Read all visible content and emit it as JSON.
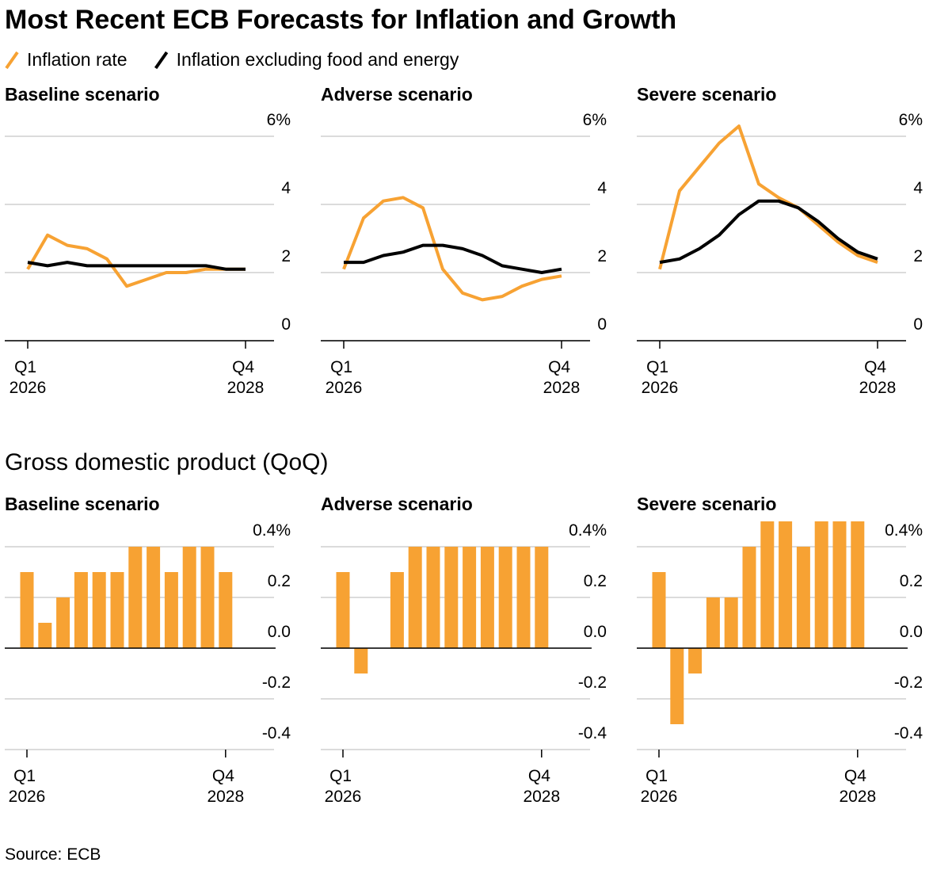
{
  "title": "Most Recent ECB Forecasts for Inflation and Growth",
  "gdp_title": "Gross domestic product (QoQ)",
  "source": "Source: ECB",
  "chart_data": [
    {
      "type": "line",
      "title": "Baseline scenario",
      "categories": [
        "Q1 2026",
        null,
        null,
        null,
        null,
        null,
        null,
        null,
        null,
        null,
        null,
        "Q4 2028"
      ],
      "series": [
        {
          "name": "Inflation rate",
          "color": "#f7a233",
          "values": [
            2.1,
            3.1,
            2.8,
            2.7,
            2.4,
            1.6,
            1.8,
            2.0,
            2.0,
            2.1,
            2.1,
            2.1
          ]
        },
        {
          "name": "Inflation excluding food and energy",
          "color": "#000000",
          "values": [
            2.3,
            2.2,
            2.3,
            2.2,
            2.2,
            2.2,
            2.2,
            2.2,
            2.2,
            2.2,
            2.1,
            2.1
          ]
        }
      ],
      "ylim": [
        0,
        6.5
      ],
      "yticks": [
        0,
        2,
        4,
        {
          "value": 6,
          "label": "6%"
        }
      ],
      "grid": true
    },
    {
      "type": "line",
      "title": "Adverse scenario",
      "categories": [
        "Q1 2026",
        null,
        null,
        null,
        null,
        null,
        null,
        null,
        null,
        null,
        null,
        "Q4 2028"
      ],
      "series": [
        {
          "name": "Inflation rate",
          "color": "#f7a233",
          "values": [
            2.1,
            3.6,
            4.1,
            4.2,
            3.9,
            2.1,
            1.4,
            1.2,
            1.3,
            1.6,
            1.8,
            1.9
          ]
        },
        {
          "name": "Inflation excluding food and energy",
          "color": "#000000",
          "values": [
            2.3,
            2.3,
            2.5,
            2.6,
            2.8,
            2.8,
            2.7,
            2.5,
            2.2,
            2.1,
            2.0,
            2.1
          ]
        }
      ],
      "ylim": [
        0,
        6.5
      ],
      "yticks": [
        0,
        2,
        4,
        {
          "value": 6,
          "label": "6%"
        }
      ],
      "grid": true
    },
    {
      "type": "line",
      "title": "Severe scenario",
      "categories": [
        "Q1 2026",
        null,
        null,
        null,
        null,
        null,
        null,
        null,
        null,
        null,
        null,
        "Q4 2028"
      ],
      "series": [
        {
          "name": "Inflation rate",
          "color": "#f7a233",
          "values": [
            2.1,
            4.4,
            5.1,
            5.8,
            6.3,
            4.6,
            4.2,
            3.9,
            3.4,
            2.9,
            2.5,
            2.3
          ]
        },
        {
          "name": "Inflation excluding food and energy",
          "color": "#000000",
          "values": [
            2.3,
            2.4,
            2.7,
            3.1,
            3.7,
            4.1,
            4.1,
            3.9,
            3.5,
            3.0,
            2.6,
            2.4
          ]
        }
      ],
      "ylim": [
        0,
        6.5
      ],
      "yticks": [
        0,
        2,
        4,
        {
          "value": 6,
          "label": "6%"
        }
      ],
      "grid": true
    },
    {
      "type": "bar",
      "title": "Baseline scenario",
      "categories": [
        "Q1 2026",
        null,
        null,
        null,
        null,
        null,
        null,
        null,
        null,
        null,
        null,
        "Q4 2028"
      ],
      "values": [
        0.3,
        0.1,
        0.2,
        0.3,
        0.3,
        0.3,
        0.4,
        0.4,
        0.3,
        0.4,
        0.4,
        0.3
      ],
      "color": "#f7a233",
      "ylim": [
        -0.4,
        0.5
      ],
      "yticks": [
        -0.4,
        -0.2,
        {
          "value": 0,
          "label": "0.0"
        },
        0.2,
        {
          "value": 0.4,
          "label": "0.4%"
        }
      ],
      "grid": true
    },
    {
      "type": "bar",
      "title": "Adverse scenario",
      "categories": [
        "Q1 2026",
        null,
        null,
        null,
        null,
        null,
        null,
        null,
        null,
        null,
        null,
        "Q4 2028"
      ],
      "values": [
        0.3,
        -0.1,
        0,
        0.3,
        0.4,
        0.4,
        0.4,
        0.4,
        0.4,
        0.4,
        0.4,
        0.4
      ],
      "color": "#f7a233",
      "ylim": [
        -0.4,
        0.5
      ],
      "yticks": [
        -0.4,
        -0.2,
        {
          "value": 0,
          "label": "0.0"
        },
        0.2,
        {
          "value": 0.4,
          "label": "0.4%"
        }
      ],
      "grid": true
    },
    {
      "type": "bar",
      "title": "Severe scenario",
      "categories": [
        "Q1 2026",
        null,
        null,
        null,
        null,
        null,
        null,
        null,
        null,
        null,
        null,
        "Q4 2028"
      ],
      "values": [
        0.3,
        -0.3,
        -0.1,
        0.2,
        0.2,
        0.4,
        0.5,
        0.5,
        0.4,
        0.5,
        0.5,
        0.5
      ],
      "color": "#f7a233",
      "ylim": [
        -0.4,
        0.5
      ],
      "yticks": [
        -0.4,
        -0.2,
        {
          "value": 0,
          "label": "0.0"
        },
        0.2,
        {
          "value": 0.4,
          "label": "0.4%"
        }
      ],
      "grid": true
    }
  ]
}
